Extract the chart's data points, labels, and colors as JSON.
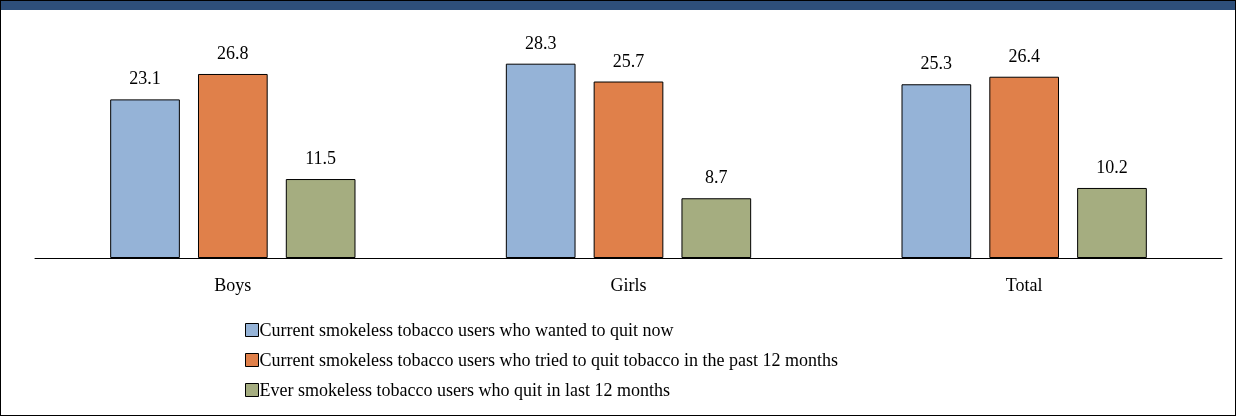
{
  "chart_data": {
    "type": "bar",
    "categories": [
      "Boys",
      "Girls",
      "Total"
    ],
    "series": [
      {
        "name": "Current smokeless tobacco users who wanted to quit now",
        "color": "#95b3d7",
        "values": [
          23.1,
          28.3,
          25.3
        ]
      },
      {
        "name": "Current smokeless tobacco users who tried to quit tobacco in the past 12 months",
        "color": "#e0804a",
        "values": [
          26.8,
          25.7,
          26.4
        ]
      },
      {
        "name": "Ever smokeless tobacco users who quit in last 12 months",
        "color": "#a5ad80",
        "values": [
          11.5,
          8.7,
          10.2
        ]
      }
    ],
    "data_labels": true,
    "legend": "bottom"
  }
}
